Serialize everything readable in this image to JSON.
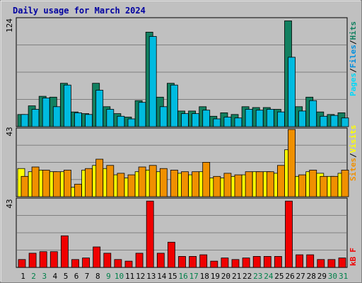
{
  "chart_data": {
    "type": "bar",
    "title": "Daily usage for March 2024",
    "categories": [
      "1",
      "2",
      "3",
      "4",
      "5",
      "6",
      "7",
      "8",
      "9",
      "10",
      "11",
      "12",
      "13",
      "14",
      "15",
      "16",
      "17",
      "18",
      "19",
      "20",
      "21",
      "22",
      "23",
      "24",
      "25",
      "26",
      "27",
      "28",
      "29",
      "30",
      "31"
    ],
    "weekend_days": [
      "2",
      "3",
      "9",
      "10",
      "16",
      "17",
      "23",
      "24",
      "30",
      "31"
    ],
    "grid": true,
    "panels": [
      {
        "name": "top",
        "ymax_label": "124",
        "ylim": [
          0,
          124
        ],
        "legend": [
          "Pages",
          "/",
          "Files",
          "/",
          "Hits"
        ],
        "series": [
          {
            "name": "Hits",
            "color": "#128060",
            "values": [
              14,
              24,
              35,
              34,
              50,
              17,
              15,
              50,
              23,
              15,
              11,
              30,
              109,
              34,
              50,
              18,
              18,
              23,
              12,
              16,
              14,
              23,
              22,
              22,
              20,
              122,
              23,
              34,
              17,
              14,
              16
            ]
          },
          {
            "name": "Files",
            "color": "#00bbe0",
            "values": [
              14,
              20,
              33,
              23,
              48,
              16,
              14,
              42,
              20,
              12,
              9,
              28,
              104,
              23,
              48,
              15,
              15,
              19,
              9,
              11,
              10,
              20,
              19,
              20,
              17,
              80,
              18,
              30,
              12,
              13,
              10
            ]
          },
          {
            "name": "Pages",
            "color": "#00d8f8",
            "values": []
          }
        ]
      },
      {
        "name": "middle",
        "ymax_label": "43",
        "ylim": [
          0,
          43
        ],
        "legend": [
          "Sites",
          "/",
          "Visits"
        ],
        "series": [
          {
            "name": "Sites",
            "color": "#ffff00",
            "values": [
              18,
              16,
              17,
              16,
              16,
              6,
              17,
              20,
              18,
              14,
              12,
              16,
              17,
              16,
              0,
              15,
              14,
              16,
              12,
              12,
              13,
              14,
              16,
              16,
              15,
              30,
              13,
              16,
              15,
              13,
              15
            ]
          },
          {
            "name": "Visits",
            "color": "#f09000",
            "values": [
              13,
              19,
              17,
              16,
              17,
              8,
              18,
              24,
              20,
              15,
              14,
              19,
              20,
              18,
              17,
              16,
              16,
              22,
              13,
              15,
              14,
              16,
              16,
              16,
              20,
              43,
              14,
              17,
              13,
              13,
              17
            ]
          }
        ]
      },
      {
        "name": "bottom",
        "ymax_label": "43",
        "ylim": [
          0,
          43
        ],
        "legend": [
          "kB",
          "F"
        ],
        "series": [
          {
            "name": "kB F",
            "color": "#f00000",
            "values": [
              5,
              9,
              10,
              10,
              20,
              5,
              6,
              13,
              9,
              5,
              4,
              9,
              42,
              9,
              16,
              7,
              7,
              8,
              4,
              6,
              5,
              6,
              7,
              7,
              7,
              42,
              8,
              8,
              5,
              5,
              6
            ]
          }
        ]
      }
    ]
  }
}
